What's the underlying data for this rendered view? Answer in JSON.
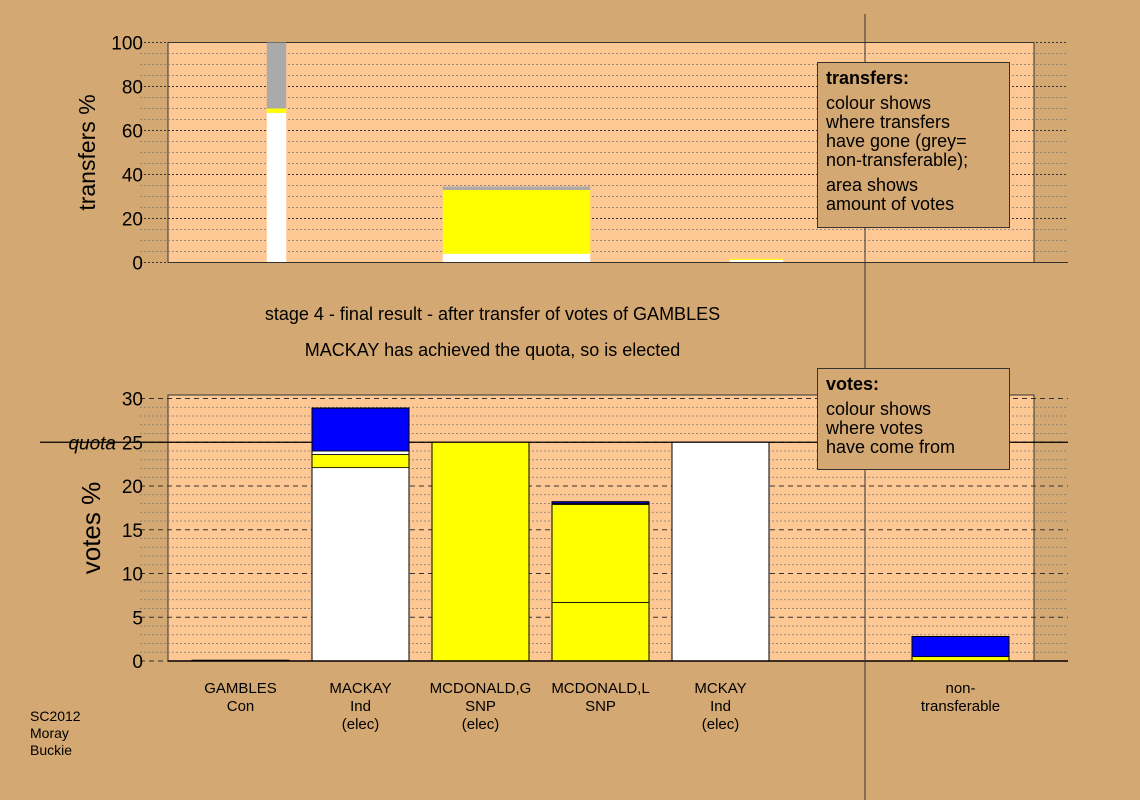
{
  "colors": {
    "background": "#d4a872",
    "plot_panel": "#fec895",
    "white": "#ffffff",
    "yellow": "#ffff00",
    "grey": "#aaaaaa",
    "blue": "#0000ff"
  },
  "caption_line1": "stage 4 - final result - after transfer of votes of GAMBLES",
  "caption_line2": "MACKAY has achieved the quota, so is elected",
  "legend_transfers": {
    "title": "transfers:",
    "text1": "colour shows\nwhere transfers\nhave gone (grey=\nnon-transferable);",
    "text2": "area shows\namount of votes"
  },
  "legend_votes": {
    "title": "votes:",
    "text1": "colour shows\nwhere votes\nhave come from"
  },
  "footer": [
    "SC2012",
    "Moray",
    "Buckie"
  ],
  "chart_data": [
    {
      "type": "bar",
      "stacked": true,
      "ylabel": "transfers %",
      "ylim": [
        0,
        100
      ],
      "yticks": [
        0,
        20,
        40,
        60,
        80,
        100
      ],
      "bars": [
        {
          "x_slot": 1,
          "width_fraction": 0.2,
          "segments": [
            {
              "value": 68,
              "color": "#ffffff"
            },
            {
              "value": 2,
              "color": "#ffff00"
            },
            {
              "value": 30,
              "color": "#aaaaaa"
            }
          ]
        },
        {
          "x_slot": 3,
          "width_fraction": 0.8,
          "segments": [
            {
              "value": 4,
              "color": "#ffffff"
            },
            {
              "value": 29,
              "color": "#ffff00"
            },
            {
              "value": 1.5,
              "color": "#aaaaaa"
            }
          ]
        },
        {
          "x_slot": 5,
          "width_fraction": 0.55,
          "segments": [
            {
              "value": 1.2,
              "color": "#ffffff"
            },
            {
              "value": 0.5,
              "color": "#ffff00"
            }
          ]
        }
      ]
    },
    {
      "type": "bar",
      "stacked": true,
      "ylabel": "votes %",
      "ylim": [
        0,
        30
      ],
      "yticks": [
        0,
        5,
        10,
        15,
        20,
        25,
        30
      ],
      "quota": 25,
      "quota_label": "quota",
      "categories": [
        {
          "lines": [
            "GAMBLES",
            "Con"
          ],
          "segments": [
            {
              "value": 0.1,
              "color": "#ffffff"
            }
          ]
        },
        {
          "lines": [
            "MACKAY",
            "Ind",
            "(elec)"
          ],
          "segments": [
            {
              "value": 22.1,
              "color": "#ffffff"
            },
            {
              "value": 1.5,
              "color": "#ffff00"
            },
            {
              "value": 0.4,
              "color": "#ffffff"
            },
            {
              "value": 4.9,
              "color": "#0000ff"
            }
          ]
        },
        {
          "lines": [
            "MCDONALD,G",
            "SNP",
            "(elec)"
          ],
          "segments": [
            {
              "value": 25.0,
              "color": "#ffff00"
            }
          ]
        },
        {
          "lines": [
            "MCDONALD,L",
            "SNP"
          ],
          "segments": [
            {
              "value": 6.7,
              "color": "#ffff00"
            },
            {
              "value": 11.2,
              "color": "#ffff00"
            },
            {
              "value": 0.1,
              "color": "#ffffff"
            },
            {
              "value": 0.2,
              "color": "#0000ff"
            }
          ]
        },
        {
          "lines": [
            "MCKAY",
            "Ind",
            "(elec)"
          ],
          "segments": [
            {
              "value": 25.0,
              "color": "#ffffff"
            }
          ]
        },
        {
          "lines": [],
          "segments": []
        },
        {
          "lines": [
            "non-",
            "transferable"
          ],
          "segments": [
            {
              "value": 0.5,
              "color": "#ffff00"
            },
            {
              "value": 2.3,
              "color": "#0000ff"
            }
          ]
        }
      ]
    }
  ]
}
